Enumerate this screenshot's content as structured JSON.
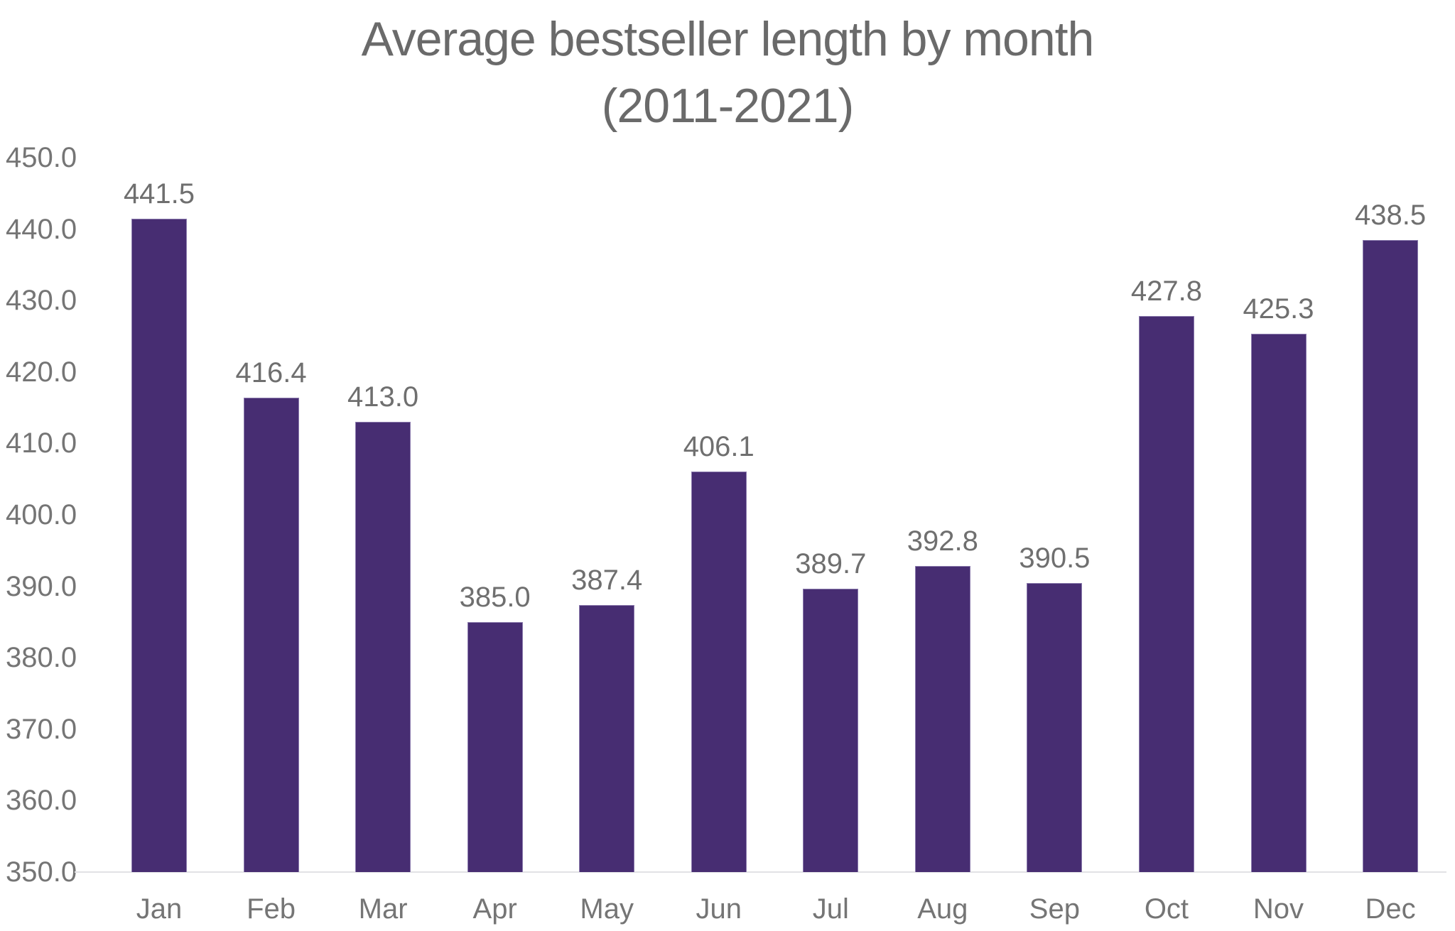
{
  "chart_data": {
    "type": "bar",
    "title": "Average bestseller length by month",
    "subtitle": "(2011-2021)",
    "categories": [
      "Jan",
      "Feb",
      "Mar",
      "Apr",
      "May",
      "Jun",
      "Jul",
      "Aug",
      "Sep",
      "Oct",
      "Nov",
      "Dec"
    ],
    "values": [
      441.5,
      416.4,
      413.0,
      385.0,
      387.4,
      406.1,
      389.7,
      392.8,
      390.5,
      427.8,
      425.3,
      438.5
    ],
    "value_labels": [
      "441.5",
      "416.4",
      "413.0",
      "385.0",
      "387.4",
      "406.1",
      "389.7",
      "392.8",
      "390.5",
      "427.8",
      "425.3",
      "438.5"
    ],
    "xlabel": "",
    "ylabel": "",
    "ylim": [
      350,
      450
    ],
    "ytick_step": 10,
    "ytick_labels": [
      "450.0",
      "440.0",
      "430.0",
      "420.0",
      "410.0",
      "400.0",
      "390.0",
      "380.0",
      "370.0",
      "360.0",
      "350.0"
    ],
    "grid": false,
    "legend": "none",
    "colors": {
      "bar_fill": "#472d72",
      "bar_border": "#8b7bad",
      "text": "#757575",
      "title": "#6a6a6a",
      "axis_line": "#e2e2e5",
      "background": "#ffffff"
    }
  }
}
